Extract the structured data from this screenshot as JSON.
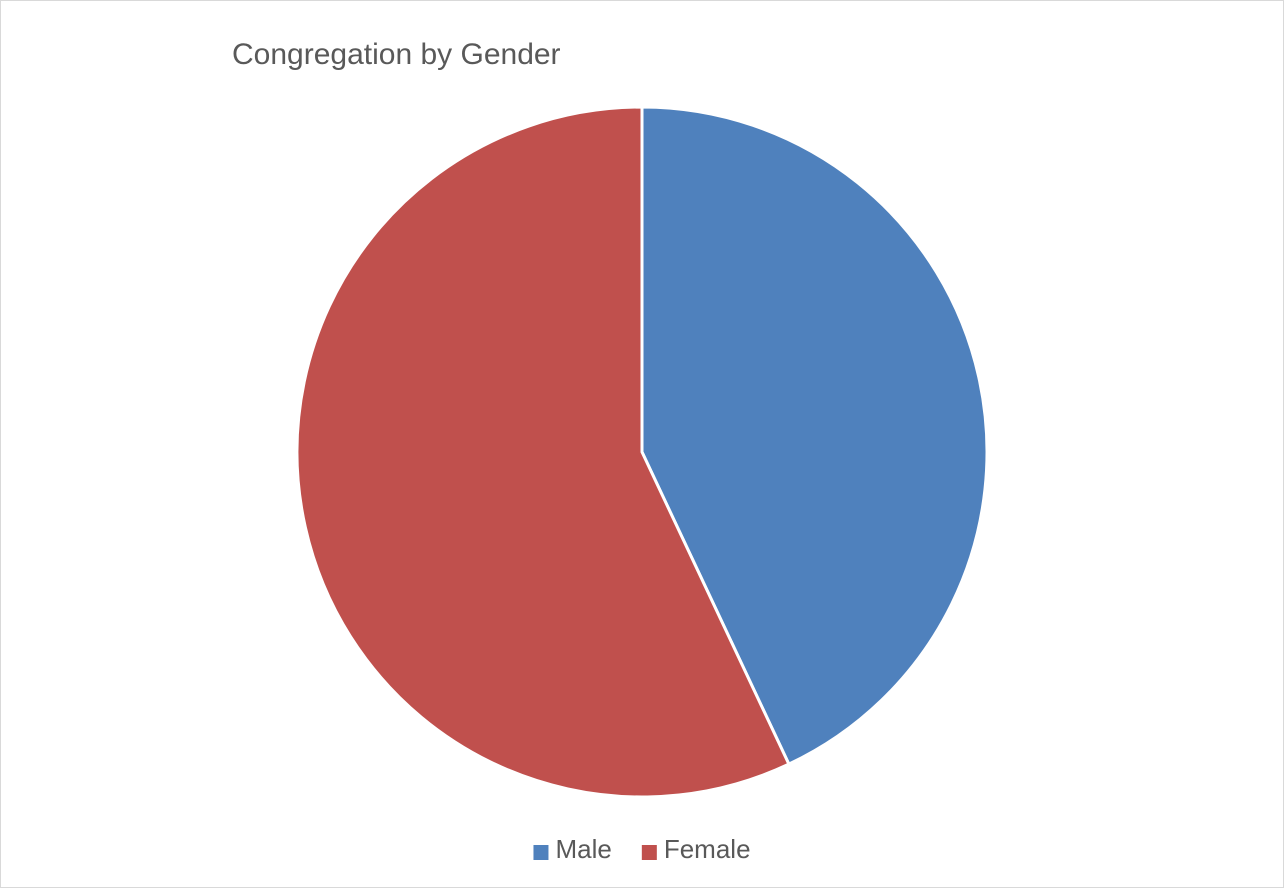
{
  "chart_data": {
    "type": "pie",
    "title": "Congregation by Gender",
    "categories": [
      "Male",
      "Female"
    ],
    "values": [
      43,
      57
    ],
    "colors": [
      "#4f81bd",
      "#c0504d"
    ],
    "legend": "bottom"
  }
}
